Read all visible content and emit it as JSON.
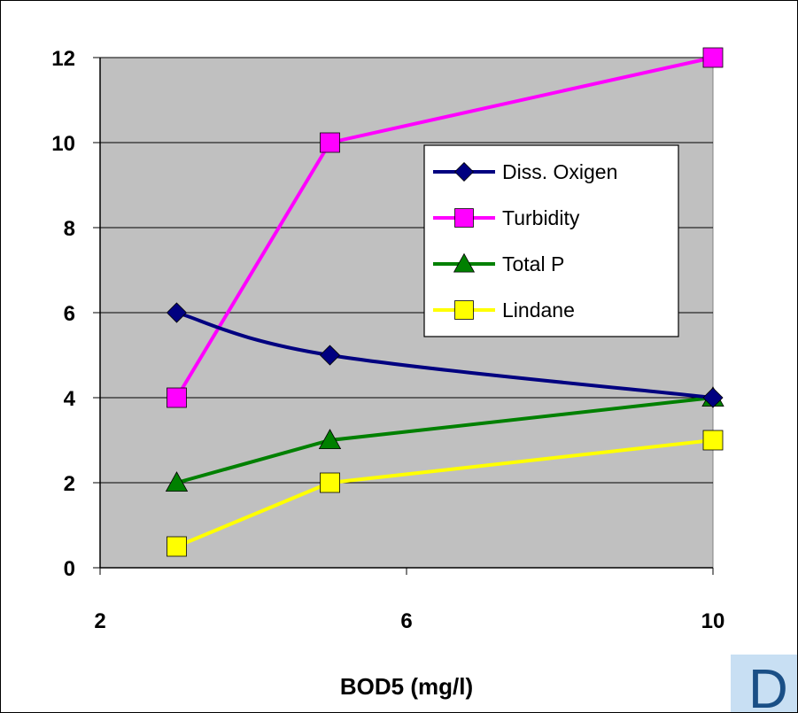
{
  "chart_data": {
    "type": "line",
    "title": "",
    "xlabel": "BOD5 (mg/l)",
    "ylabel": "",
    "xlim": [
      2,
      10
    ],
    "ylim": [
      0,
      12
    ],
    "xticks": [
      "2",
      "6",
      "10"
    ],
    "yticks": [
      "0",
      "2",
      "4",
      "6",
      "8",
      "10",
      "12"
    ],
    "grid": "horizontal",
    "plot_background": "#c0c0c0",
    "legend_position": "upper-right-inside",
    "series": [
      {
        "name": "Diss. Oxigen",
        "color": "#000080",
        "marker": "diamond",
        "smooth": true,
        "points": [
          [
            3,
            6
          ],
          [
            5,
            5
          ],
          [
            10,
            4
          ]
        ]
      },
      {
        "name": "Turbidity",
        "color": "#ff00ff",
        "marker": "square",
        "smooth": false,
        "points": [
          [
            3,
            4
          ],
          [
            5,
            10
          ],
          [
            10,
            12
          ]
        ]
      },
      {
        "name": "Total P",
        "color": "#008000",
        "marker": "triangle",
        "smooth": false,
        "points": [
          [
            3,
            2
          ],
          [
            5,
            3
          ],
          [
            10,
            4
          ]
        ]
      },
      {
        "name": "Lindane",
        "color": "#ffff00",
        "marker": "square",
        "smooth": false,
        "points": [
          [
            3,
            0.5
          ],
          [
            5,
            2
          ],
          [
            10,
            3
          ]
        ]
      }
    ]
  },
  "badge": {
    "text": "D",
    "background": "#c8dff3",
    "color": "#1a4f86"
  }
}
